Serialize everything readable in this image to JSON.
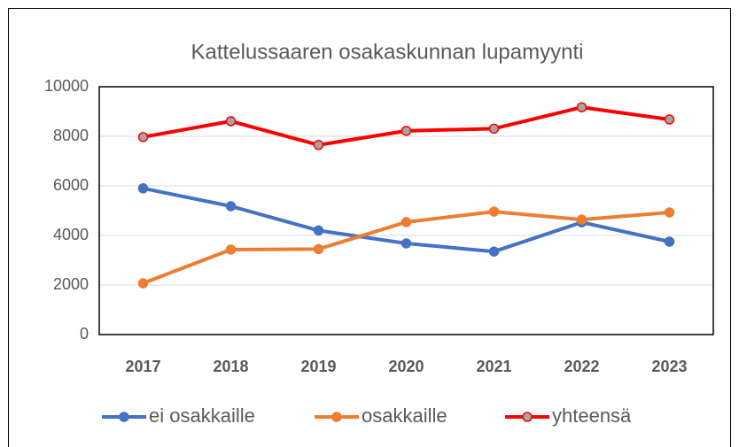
{
  "chart_data": {
    "type": "line",
    "title": "Kattelussaaren osakaskunnan lupamyynti",
    "categories": [
      "2017",
      "2018",
      "2019",
      "2020",
      "2021",
      "2022",
      "2023"
    ],
    "series": [
      {
        "name": "ei osakkaille",
        "color": "#4472c4",
        "marker_color": "#4472c4",
        "values": [
          5900,
          5180,
          4200,
          3680,
          3350,
          4530,
          3750
        ]
      },
      {
        "name": "osakkaille",
        "color": "#ed7d31",
        "marker_color": "#ed7d31",
        "values": [
          2070,
          3430,
          3450,
          4540,
          4960,
          4640,
          4930
        ]
      },
      {
        "name": "yhteensä",
        "color": "#ff0000",
        "marker_color": "#a5a5a5",
        "values": [
          7970,
          8610,
          7650,
          8220,
          8310,
          9170,
          8680
        ]
      }
    ],
    "ylim": [
      0,
      10000
    ],
    "yticks": [
      0,
      2000,
      4000,
      6000,
      8000,
      10000
    ],
    "grid": true,
    "legend": "bottom"
  }
}
